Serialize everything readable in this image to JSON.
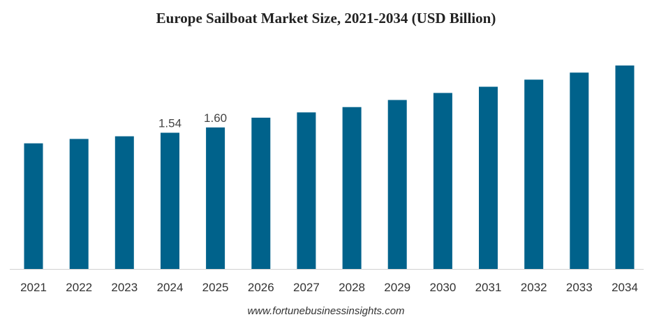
{
  "chart_data": {
    "type": "bar",
    "title": "Europe Sailboat Market Size, 2021-2034 (USD Billion)",
    "categories": [
      "2021",
      "2022",
      "2023",
      "2024",
      "2025",
      "2026",
      "2027",
      "2028",
      "2029",
      "2030",
      "2031",
      "2032",
      "2033",
      "2034"
    ],
    "values": [
      1.42,
      1.47,
      1.5,
      1.54,
      1.6,
      1.71,
      1.77,
      1.83,
      1.91,
      1.99,
      2.06,
      2.14,
      2.22,
      2.3
    ],
    "data_labels": {
      "3": "1.54",
      "4": "1.60"
    },
    "xlabel": "",
    "ylabel": "",
    "ylim": [
      0,
      2.3
    ],
    "grid": false,
    "bar_color": "#00628B"
  },
  "source": "www.fortunebusinessinsights.com"
}
